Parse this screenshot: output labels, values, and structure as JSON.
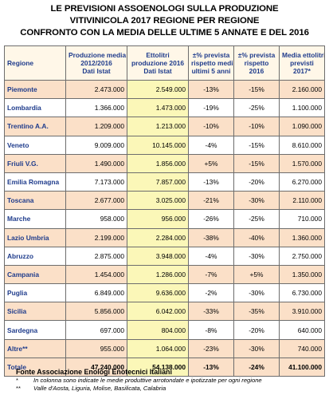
{
  "title": {
    "line1": "LE PREVISIONI ASSOENOLOGI SULLA PRODUZIONE",
    "line2": "VITIVINICOLA 2017 REGIONE PER REGIONE",
    "line3": "CONFRONTO CON LA MEDIA DELLE ULTIME 5 ANNATE E DEL 2016"
  },
  "table": {
    "headers": {
      "region": "Regione",
      "c1": [
        "Produzione media",
        "2012/2016",
        "Dati Istat"
      ],
      "c2": [
        "Ettolitri",
        "produzione 2016",
        "Dati Istat"
      ],
      "c3": [
        "±% prevista",
        "rispetto media",
        "ultimi 5 anni"
      ],
      "c4": [
        "±% prevista",
        "rispetto",
        "2016"
      ],
      "c5": [
        "Media ettolitri",
        "previsti",
        "2017*"
      ]
    },
    "rows": [
      {
        "region": "Piemonte",
        "avg": "2.473.000",
        "prod2016": "2.549.000",
        "pct_avg": "-13%",
        "pct_2016": "-15%",
        "forecast": "2.160.000"
      },
      {
        "region": "Lombardia",
        "avg": "1.366.000",
        "prod2016": "1.473.000",
        "pct_avg": "-19%",
        "pct_2016": "-25%",
        "forecast": "1.100.000"
      },
      {
        "region": "Trentino A.A.",
        "avg": "1.209.000",
        "prod2016": "1.213.000",
        "pct_avg": "-10%",
        "pct_2016": "-10%",
        "forecast": "1.090.000"
      },
      {
        "region": "Veneto",
        "avg": "9.009.000",
        "prod2016": "10.145.000",
        "pct_avg": "-4%",
        "pct_2016": "-15%",
        "forecast": "8.610.000"
      },
      {
        "region": "Friuli V.G.",
        "avg": "1.490.000",
        "prod2016": "1.856.000",
        "pct_avg": "+5%",
        "pct_2016": "-15%",
        "forecast": "1.570.000"
      },
      {
        "region": "Emilia Romagna",
        "avg": "7.173.000",
        "prod2016": "7.857.000",
        "pct_avg": "-13%",
        "pct_2016": "-20%",
        "forecast": "6.270.000"
      },
      {
        "region": "Toscana",
        "avg": "2.677.000",
        "prod2016": "3.025.000",
        "pct_avg": "-21%",
        "pct_2016": "-30%",
        "forecast": "2.110.000"
      },
      {
        "region": "Marche",
        "avg": "958.000",
        "prod2016": "956.000",
        "pct_avg": "-26%",
        "pct_2016": "-25%",
        "forecast": "710.000"
      },
      {
        "region": "Lazio Umbria",
        "avg": "2.199.000",
        "prod2016": "2.284.000",
        "pct_avg": "-38%",
        "pct_2016": "-40%",
        "forecast": "1.360.000"
      },
      {
        "region": "Abruzzo",
        "avg": "2.875.000",
        "prod2016": "3.948.000",
        "pct_avg": "-4%",
        "pct_2016": "-30%",
        "forecast": "2.750.000"
      },
      {
        "region": "Campania",
        "avg": "1.454.000",
        "prod2016": "1.286.000",
        "pct_avg": "-7%",
        "pct_2016": "+5%",
        "forecast": "1.350.000"
      },
      {
        "region": "Puglia",
        "avg": "6.849.000",
        "prod2016": "9.636.000",
        "pct_avg": "-2%",
        "pct_2016": "-30%",
        "forecast": "6.730.000"
      },
      {
        "region": "Sicilia",
        "avg": "5.856.000",
        "prod2016": "6.042.000",
        "pct_avg": "-33%",
        "pct_2016": "-35%",
        "forecast": "3.910.000"
      },
      {
        "region": "Sardegna",
        "avg": "697.000",
        "prod2016": "804.000",
        "pct_avg": "-8%",
        "pct_2016": "-20%",
        "forecast": "640.000"
      },
      {
        "region": "Altre**",
        "avg": "955.000",
        "prod2016": "1.064.000",
        "pct_avg": "-23%",
        "pct_2016": "-30%",
        "forecast": "740.000"
      }
    ],
    "total": {
      "region": "Totale",
      "avg": "47.240.000",
      "prod2016": "54.138.000",
      "pct_avg": "-13%",
      "pct_2016": "-24%",
      "forecast": "41.100.000"
    }
  },
  "notes": {
    "source": "Fonte Associazione Enologi Enotecnici Italiani",
    "footnotes": [
      {
        "marker": "*",
        "text": "In colonna sono indicate le medie produttive arrotondate e ipotizzate per ogni regione"
      },
      {
        "marker": "**",
        "text": "Valle d'Aosta, Liguria, Molise, Basilicata, Calabria"
      }
    ]
  }
}
